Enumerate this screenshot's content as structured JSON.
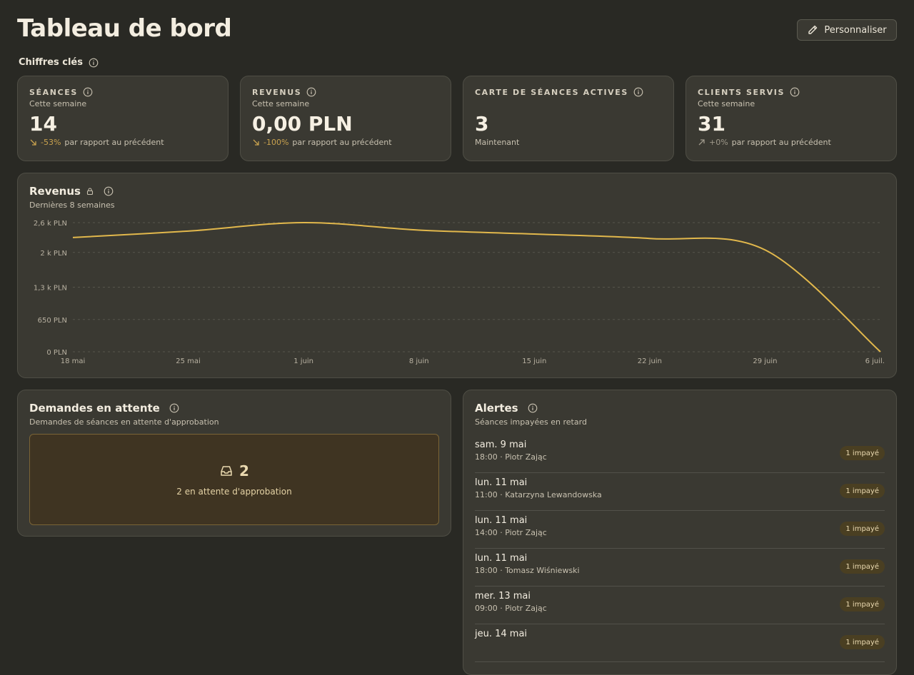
{
  "header": {
    "title": "Tableau de bord",
    "customize_label": "Personnaliser"
  },
  "section": {
    "label": "Chiffres clés"
  },
  "kpis": [
    {
      "title": "SÉANCES",
      "subtitle": "Cette semaine",
      "value": "14",
      "delta": "-53%",
      "delta_text": "par rapport au précédent",
      "trend": "down"
    },
    {
      "title": "REVENUS",
      "subtitle": "Cette semaine",
      "value": "0,00 PLN",
      "delta": "-100%",
      "delta_text": "par rapport au précédent",
      "trend": "down"
    },
    {
      "title": "CARTE DE SÉANCES ACTIVES",
      "subtitle": "",
      "value": "3",
      "delta": "",
      "delta_text": "Maintenant",
      "trend": "none"
    },
    {
      "title": "CLIENTS SERVIS",
      "subtitle": "Cette semaine",
      "value": "31",
      "delta": "+0%",
      "delta_text": "par rapport au précédent",
      "trend": "flat"
    }
  ],
  "revenue_chart": {
    "title": "Revenus",
    "subtitle": "Dernières 8 semaines"
  },
  "chart_data": {
    "type": "line",
    "title": "Revenus",
    "subtitle": "Dernières 8 semaines",
    "x": [
      "18 mai",
      "25 mai",
      "1 juin",
      "8 juin",
      "15 juin",
      "22 juin",
      "29 juin",
      "6 juil."
    ],
    "series": [
      {
        "values": [
          2300,
          2430,
          2600,
          2450,
          2370,
          2280,
          2050,
          0
        ]
      }
    ],
    "ylim": [
      0,
      2600
    ],
    "y_ticks": [
      0,
      650,
      1300,
      2000,
      2600
    ],
    "y_tick_labels": [
      "0 PLN",
      "650 PLN",
      "1,3 k PLN",
      "2 k PLN",
      "2,6 k PLN"
    ],
    "grid": true,
    "line_color": "#e2b84c"
  },
  "pending": {
    "title": "Demandes en attente",
    "subtitle": "Demandes de séances en attente d'approbation",
    "count": "2",
    "text": "2 en attente d'approbation"
  },
  "alerts": {
    "title": "Alertes",
    "subtitle": "Séances impayées en retard",
    "items": [
      {
        "date": "sam. 9 mai",
        "detail": "18:00 · Piotr Zając",
        "badge": "1 impayé"
      },
      {
        "date": "lun. 11 mai",
        "detail": "11:00 · Katarzyna Lewandowska",
        "badge": "1 impayé"
      },
      {
        "date": "lun. 11 mai",
        "detail": "14:00 · Piotr Zając",
        "badge": "1 impayé"
      },
      {
        "date": "lun. 11 mai",
        "detail": "18:00 · Tomasz Wiśniewski",
        "badge": "1 impayé"
      },
      {
        "date": "mer. 13 mai",
        "detail": "09:00 · Piotr Zając",
        "badge": "1 impayé"
      },
      {
        "date": "jeu. 14 mai",
        "detail": "",
        "badge": "1 impayé"
      }
    ]
  },
  "colors": {
    "background": "#292924",
    "card": "#3a3932",
    "accent": "#e2b84c",
    "pending_bg": "#3f3422"
  }
}
